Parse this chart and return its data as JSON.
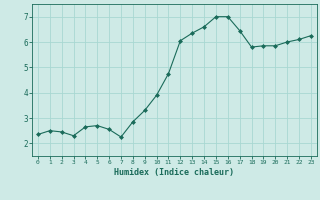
{
  "x": [
    0,
    1,
    2,
    3,
    4,
    5,
    6,
    7,
    8,
    9,
    10,
    11,
    12,
    13,
    14,
    15,
    16,
    17,
    18,
    19,
    20,
    21,
    22,
    23
  ],
  "y": [
    2.35,
    2.5,
    2.45,
    2.3,
    2.65,
    2.7,
    2.55,
    2.25,
    2.85,
    3.3,
    3.9,
    4.75,
    6.05,
    6.35,
    6.6,
    7.0,
    7.0,
    6.45,
    5.8,
    5.85,
    5.85,
    6.0,
    6.1,
    6.25
  ],
  "line_color": "#1a6b5a",
  "marker": "D",
  "marker_size": 2.0,
  "bg_color": "#ceeae6",
  "grid_color": "#a8d8d2",
  "xlabel": "Humidex (Indice chaleur)",
  "xlabel_color": "#1a6b5a",
  "tick_color": "#1a6b5a",
  "ylim": [
    1.5,
    7.5
  ],
  "yticks": [
    2,
    3,
    4,
    5,
    6,
    7
  ],
  "xlim": [
    -0.5,
    23.5
  ],
  "xticks": [
    0,
    1,
    2,
    3,
    4,
    5,
    6,
    7,
    8,
    9,
    10,
    11,
    12,
    13,
    14,
    15,
    16,
    17,
    18,
    19,
    20,
    21,
    22,
    23
  ]
}
